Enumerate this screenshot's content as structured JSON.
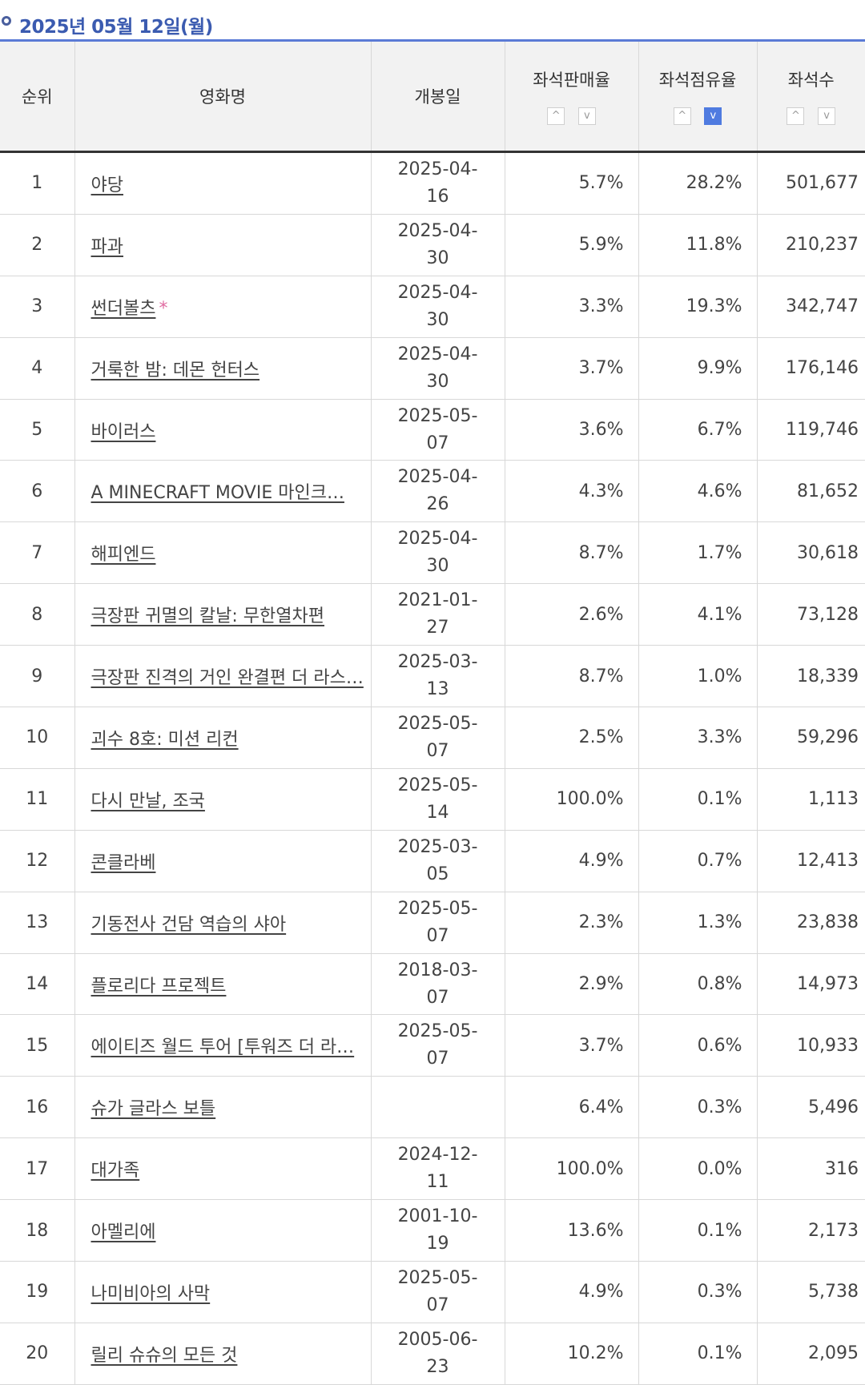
{
  "date_header": "2025년 05월 12일(월)",
  "columns": {
    "rank": "순위",
    "title": "영화명",
    "release": "개봉일",
    "seat_sales": "좌석판매율",
    "seat_share": "좌석점유율",
    "seats": "좌석수"
  },
  "sort_icons": {
    "up": "^",
    "down": "v"
  },
  "rows": [
    {
      "rank": "1",
      "title": "야당",
      "release": "2025-04-16",
      "sales": "5.7%",
      "share": "28.2%",
      "seats": "501,677"
    },
    {
      "rank": "2",
      "title": "파과",
      "release": "2025-04-30",
      "sales": "5.9%",
      "share": "11.8%",
      "seats": "210,237"
    },
    {
      "rank": "3",
      "title": "썬더볼츠",
      "title_mark": "*",
      "release": "2025-04-30",
      "sales": "3.3%",
      "share": "19.3%",
      "seats": "342,747"
    },
    {
      "rank": "4",
      "title": "거룩한 밤: 데몬 헌터스",
      "release": "2025-04-30",
      "sales": "3.7%",
      "share": "9.9%",
      "seats": "176,146"
    },
    {
      "rank": "5",
      "title": "바이러스",
      "release": "2025-05-07",
      "sales": "3.6%",
      "share": "6.7%",
      "seats": "119,746"
    },
    {
      "rank": "6",
      "title": "A MINECRAFT MOVIE 마인크…",
      "release": "2025-04-26",
      "sales": "4.3%",
      "share": "4.6%",
      "seats": "81,652"
    },
    {
      "rank": "7",
      "title": "해피엔드",
      "release": "2025-04-30",
      "sales": "8.7%",
      "share": "1.7%",
      "seats": "30,618"
    },
    {
      "rank": "8",
      "title": "극장판 귀멸의 칼날: 무한열차편",
      "release": "2021-01-27",
      "sales": "2.6%",
      "share": "4.1%",
      "seats": "73,128"
    },
    {
      "rank": "9",
      "title": "극장판 진격의 거인 완결편 더 라스…",
      "release": "2025-03-13",
      "sales": "8.7%",
      "share": "1.0%",
      "seats": "18,339"
    },
    {
      "rank": "10",
      "title": "괴수 8호: 미션 리컨",
      "release": "2025-05-07",
      "sales": "2.5%",
      "share": "3.3%",
      "seats": "59,296"
    },
    {
      "rank": "11",
      "title": "다시 만날, 조국",
      "release": "2025-05-14",
      "sales": "100.0%",
      "share": "0.1%",
      "seats": "1,113"
    },
    {
      "rank": "12",
      "title": "콘클라베",
      "release": "2025-03-05",
      "sales": "4.9%",
      "share": "0.7%",
      "seats": "12,413"
    },
    {
      "rank": "13",
      "title": "기동전사 건담 역습의 샤아",
      "release": "2025-05-07",
      "sales": "2.3%",
      "share": "1.3%",
      "seats": "23,838"
    },
    {
      "rank": "14",
      "title": "플로리다 프로젝트",
      "release": "2018-03-07",
      "sales": "2.9%",
      "share": "0.8%",
      "seats": "14,973"
    },
    {
      "rank": "15",
      "title": "에이티즈 월드 투어 [투워즈 더 라…",
      "release": "2025-05-07",
      "sales": "3.7%",
      "share": "0.6%",
      "seats": "10,933"
    },
    {
      "rank": "16",
      "title": "슈가 글라스 보틀",
      "release": "",
      "sales": "6.4%",
      "share": "0.3%",
      "seats": "5,496"
    },
    {
      "rank": "17",
      "title": "대가족",
      "release": "2024-12-11",
      "sales": "100.0%",
      "share": "0.0%",
      "seats": "316"
    },
    {
      "rank": "18",
      "title": "아멜리에",
      "release": "2001-10-19",
      "sales": "13.6%",
      "share": "0.1%",
      "seats": "2,173"
    },
    {
      "rank": "19",
      "title": "나미비아의 사막",
      "release": "2025-05-07",
      "sales": "4.9%",
      "share": "0.3%",
      "seats": "5,738"
    },
    {
      "rank": "20",
      "title": "릴리 슈슈의 모든 것",
      "release": "2005-06-23",
      "sales": "10.2%",
      "share": "0.1%",
      "seats": "2,095"
    }
  ],
  "colors": {
    "accent": "#5b7bd6",
    "date_text": "#3b5bb0",
    "active_sort": "#4f7be0",
    "star": "#e06aa0"
  }
}
